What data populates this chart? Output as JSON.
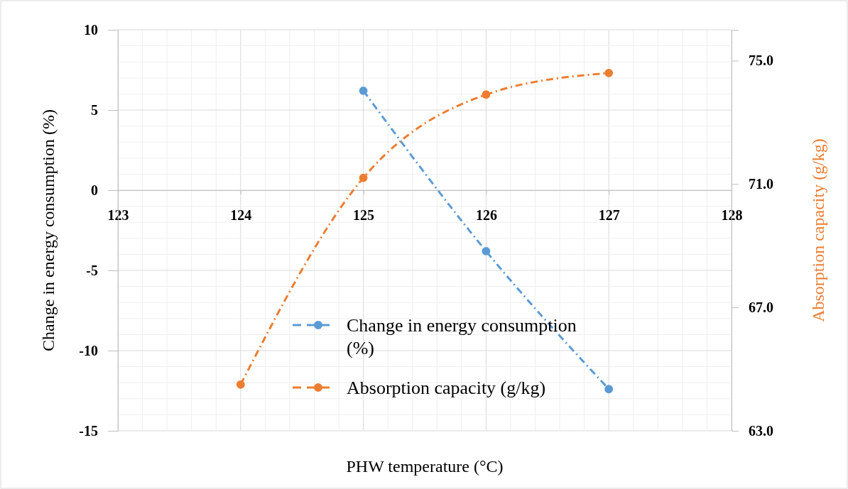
{
  "chart_data": {
    "type": "line",
    "xlabel": "PHW temperature (°C)",
    "ylabel": "Change in energy consumption (%)",
    "y2label": "Absorption capacity (g/kg)",
    "xlim": [
      123,
      128
    ],
    "xticks": [
      123,
      124,
      125,
      126,
      127,
      128
    ],
    "ylim": [
      -15,
      10
    ],
    "yticks": [
      -15,
      -10,
      -5,
      0,
      5,
      10
    ],
    "y2lim": [
      63,
      76
    ],
    "y2ticks": [
      {
        "value": 63,
        "label": "63.0"
      },
      {
        "value": 67,
        "label": "67.0"
      },
      {
        "value": 71,
        "label": "71.0"
      },
      {
        "value": 75,
        "label": "75.0"
      }
    ],
    "grid": true,
    "legend": "bottom",
    "marker": "circle",
    "line_style": "dashed",
    "series": [
      {
        "name": "Change in energy consumption (%)",
        "color": "#5b9bd5",
        "x": [
          125,
          126,
          127
        ],
        "values": [
          6.2,
          -3.8,
          -12.4
        ]
      },
      {
        "name": "Absorption capacity (g/kg)",
        "color": "#ed7d31",
        "axis": "y2",
        "x": [
          124,
          125,
          126,
          127
        ],
        "values": [
          64.5,
          71.2,
          73.9,
          74.6
        ]
      }
    ]
  }
}
